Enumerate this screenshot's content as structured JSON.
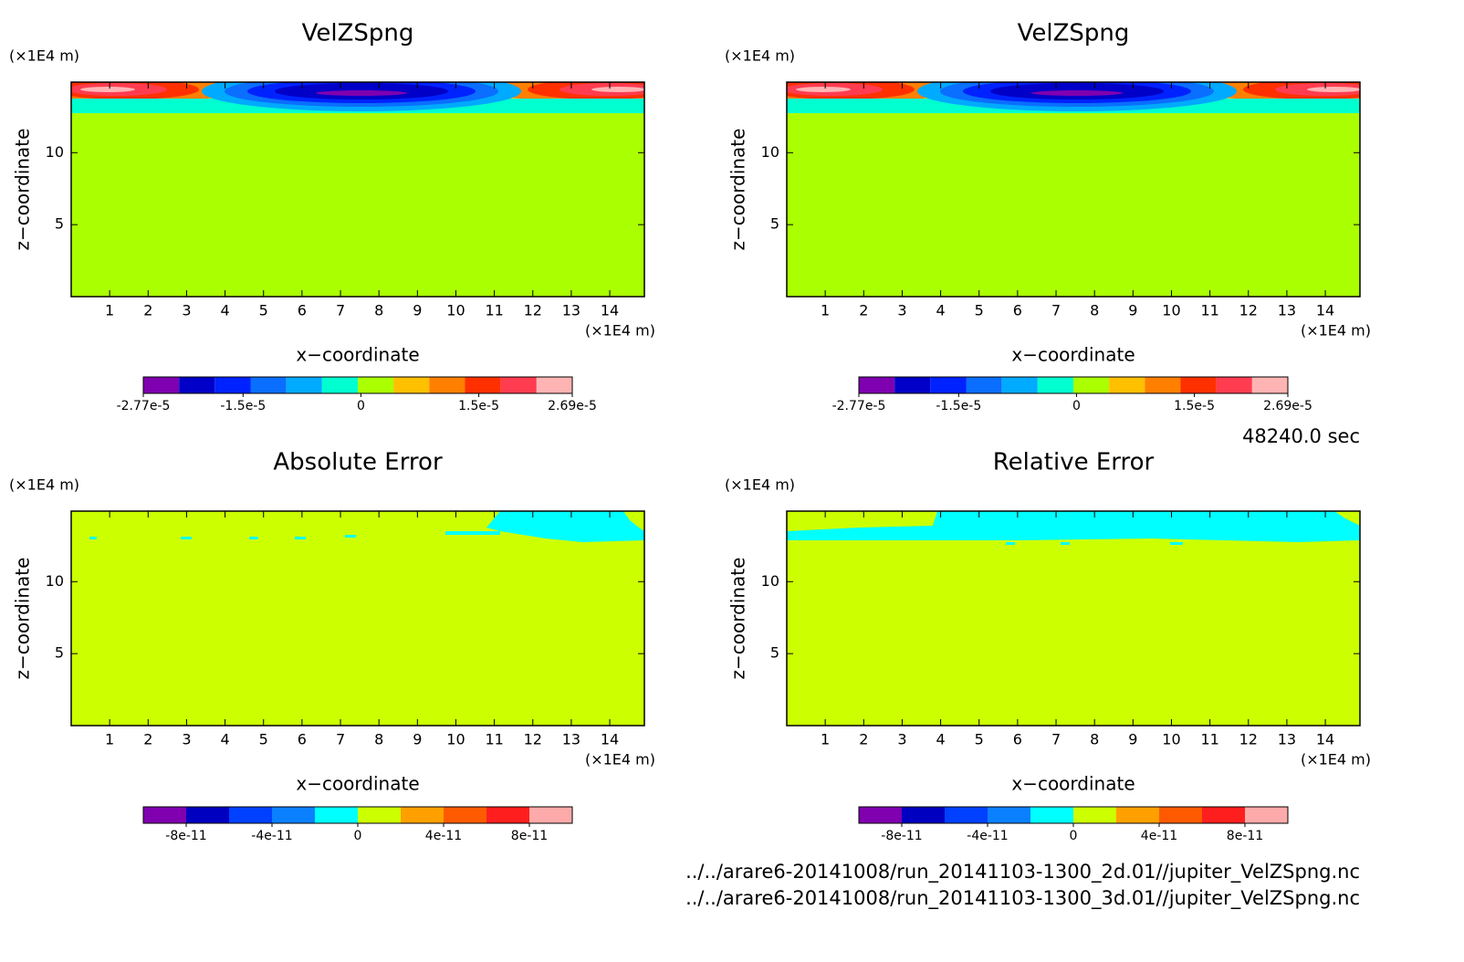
{
  "chart_data": [
    {
      "type": "contour",
      "title": "VelZSpng",
      "x_label": "x−coordinate",
      "y_label": "z−coordinate",
      "x_unit": "(×1E4 m)",
      "y_unit": "(×1E4 m)",
      "xlim": [
        0,
        14.9
      ],
      "xticks": [
        1,
        2,
        3,
        4,
        5,
        6,
        7,
        8,
        9,
        10,
        11,
        12,
        13,
        14
      ],
      "ylim": [
        0,
        14.9
      ],
      "yticks": [
        5,
        10
      ],
      "colorbar": {
        "colors": [
          "#7f00b0",
          "#0000c8",
          "#0022ff",
          "#0a6eff",
          "#00aaff",
          "#00ffd0",
          "#aaff00",
          "#ffc000",
          "#ff8000",
          "#ff3000",
          "#ff3c50",
          "#ffb4b4"
        ],
        "lim": [
          -2.77e-05,
          2.69e-05
        ],
        "ticks": [
          {
            "value": -2.77e-05,
            "label": "-2.77e-5"
          },
          {
            "value": -1.5e-05,
            "label": "-1.5e-5"
          },
          0,
          {
            "value": 1.5e-05,
            "label": "1.5e-5"
          },
          {
            "value": 2.69e-05,
            "label": "2.69e-5"
          }
        ]
      }
    },
    {
      "type": "contour",
      "title": "VelZSpng",
      "x_label": "x−coordinate",
      "y_label": "z−coordinate",
      "x_unit": "(×1E4 m)",
      "y_unit": "(×1E4 m)",
      "xlim": [
        0,
        14.9
      ],
      "xticks": [
        1,
        2,
        3,
        4,
        5,
        6,
        7,
        8,
        9,
        10,
        11,
        12,
        13,
        14
      ],
      "ylim": [
        0,
        14.9
      ],
      "yticks": [
        5,
        10
      ],
      "colorbar": {
        "colors": [
          "#7f00b0",
          "#0000c8",
          "#0022ff",
          "#0a6eff",
          "#00aaff",
          "#00ffd0",
          "#aaff00",
          "#ffc000",
          "#ff8000",
          "#ff3000",
          "#ff3c50",
          "#ffb4b4"
        ],
        "lim": [
          -2.77e-05,
          2.69e-05
        ],
        "ticks": [
          {
            "value": -2.77e-05,
            "label": "-2.77e-5"
          },
          {
            "value": -1.5e-05,
            "label": "-1.5e-5"
          },
          0,
          {
            "value": 1.5e-05,
            "label": "1.5e-5"
          },
          {
            "value": 2.69e-05,
            "label": "2.69e-5"
          }
        ]
      }
    },
    {
      "type": "contour",
      "title": "Absolute Error",
      "x_label": "x−coordinate",
      "y_label": "z−coordinate",
      "x_unit": "(×1E4 m)",
      "y_unit": "(×1E4 m)",
      "xlim": [
        0,
        14.9
      ],
      "xticks": [
        1,
        2,
        3,
        4,
        5,
        6,
        7,
        8,
        9,
        10,
        11,
        12,
        13,
        14
      ],
      "ylim": [
        0,
        14.9
      ],
      "yticks": [
        5,
        10
      ],
      "colorbar": {
        "colors": [
          "#8000b0",
          "#0000c0",
          "#0040ff",
          "#0a80ff",
          "#00ffff",
          "#ccff00",
          "#ffa000",
          "#ff5a00",
          "#ff1e1e",
          "#ffaaaa"
        ],
        "lim": [
          -1e-10,
          1e-10
        ],
        "ticks": [
          {
            "value": -8e-11,
            "label": "-8e-11"
          },
          {
            "value": -4e-11,
            "label": "-4e-11"
          },
          0,
          {
            "value": 4e-11,
            "label": "4e-11"
          },
          {
            "value": 8e-11,
            "label": "8e-11"
          }
        ]
      }
    },
    {
      "type": "contour",
      "title": "Relative Error",
      "x_label": "x−coordinate",
      "y_label": "z−coordinate",
      "x_unit": "(×1E4 m)",
      "y_unit": "(×1E4 m)",
      "xlim": [
        0,
        14.9
      ],
      "xticks": [
        1,
        2,
        3,
        4,
        5,
        6,
        7,
        8,
        9,
        10,
        11,
        12,
        13,
        14
      ],
      "ylim": [
        0,
        14.9
      ],
      "yticks": [
        5,
        10
      ],
      "colorbar": {
        "colors": [
          "#8000b0",
          "#0000c0",
          "#0040ff",
          "#0a80ff",
          "#00ffff",
          "#ccff00",
          "#ffa000",
          "#ff5a00",
          "#ff1e1e",
          "#ffaaaa"
        ],
        "lim": [
          -1e-10,
          1e-10
        ],
        "ticks": [
          {
            "value": -8e-11,
            "label": "-8e-11"
          },
          {
            "value": -4e-11,
            "label": "-4e-11"
          },
          0,
          {
            "value": 4e-11,
            "label": "4e-11"
          },
          {
            "value": 8e-11,
            "label": "8e-11"
          }
        ]
      }
    }
  ],
  "annotations": {
    "time": "48240.0 sec",
    "files": [
      "../../arare6-20141008/run_20141103-1300_2d.01//jupiter_VelZSpng.nc",
      "../../arare6-20141008/run_20141103-1300_3d.01//jupiter_VelZSpng.nc"
    ]
  }
}
